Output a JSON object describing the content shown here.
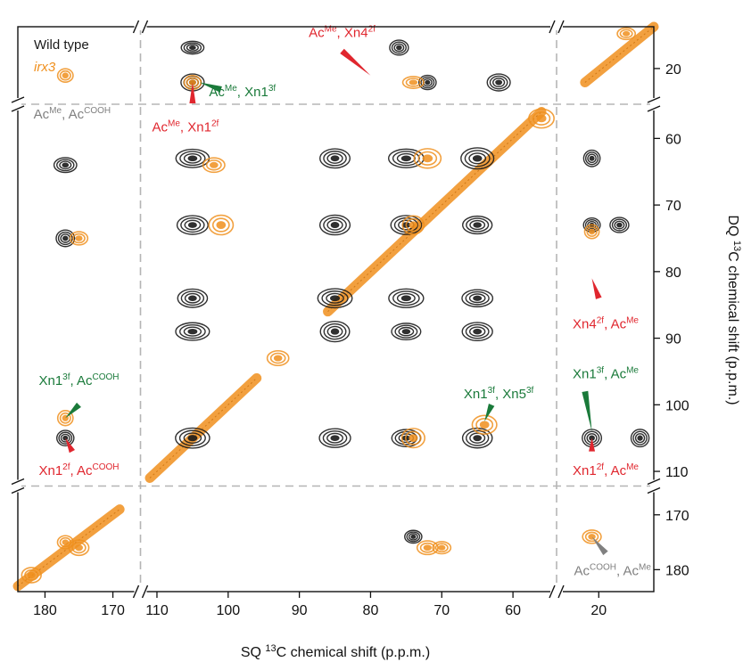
{
  "chart_data": {
    "type": "scatter",
    "subtype": "2D NMR contour spectrum (broken axes)",
    "xlabel_parts": [
      "SQ ",
      "13",
      "C chemical shift (p.p.m.)"
    ],
    "ylabel_parts": [
      "DQ ",
      "13",
      "C chemical shift (p.p.m.)"
    ],
    "x_segments": [
      {
        "range": [
          184,
          166
        ],
        "ticks": [
          180,
          170
        ]
      },
      {
        "range": [
          112,
          54
        ],
        "ticks": [
          110,
          100,
          90,
          80,
          70,
          60
        ]
      },
      {
        "range": [
          26,
          12
        ],
        "ticks": [
          20
        ]
      }
    ],
    "y_segments": [
      {
        "range": [
          14,
          25
        ],
        "ticks": [
          20
        ]
      },
      {
        "range": [
          55,
          112
        ],
        "ticks": [
          60,
          70,
          80,
          90,
          100,
          110
        ]
      },
      {
        "range": [
          165,
          184
        ],
        "ticks": [
          170,
          180
        ]
      }
    ],
    "grid": false,
    "legend_position": "top-left",
    "series": [
      {
        "name": "Wild type",
        "color": "#1a1a1a",
        "peaks": [
          {
            "x": 105,
            "y": 17
          },
          {
            "x": 76,
            "y": 17
          },
          {
            "x": 72,
            "y": 22
          },
          {
            "x": 62,
            "y": 22
          },
          {
            "x": 105,
            "y": 22
          },
          {
            "x": 177,
            "y": 64
          },
          {
            "x": 177,
            "y": 75
          },
          {
            "x": 105,
            "y": 63
          },
          {
            "x": 105,
            "y": 73
          },
          {
            "x": 105,
            "y": 84
          },
          {
            "x": 105,
            "y": 89
          },
          {
            "x": 85,
            "y": 63
          },
          {
            "x": 75,
            "y": 63
          },
          {
            "x": 65,
            "y": 63
          },
          {
            "x": 85,
            "y": 73
          },
          {
            "x": 75,
            "y": 73
          },
          {
            "x": 65,
            "y": 73
          },
          {
            "x": 85,
            "y": 84
          },
          {
            "x": 75,
            "y": 84
          },
          {
            "x": 65,
            "y": 84
          },
          {
            "x": 85,
            "y": 89
          },
          {
            "x": 75,
            "y": 89
          },
          {
            "x": 65,
            "y": 89
          },
          {
            "x": 85,
            "y": 105
          },
          {
            "x": 75,
            "y": 105
          },
          {
            "x": 65,
            "y": 105
          },
          {
            "x": 21,
            "y": 63
          },
          {
            "x": 21,
            "y": 73
          },
          {
            "x": 17,
            "y": 73
          },
          {
            "x": 21,
            "y": 105
          },
          {
            "x": 177,
            "y": 105
          },
          {
            "x": 105,
            "y": 105
          },
          {
            "x": 74,
            "y": 174
          },
          {
            "x": 14,
            "y": 105
          }
        ]
      },
      {
        "name": "irx3",
        "color": "#f0901e",
        "peaks": [
          {
            "x": 177,
            "y": 21
          },
          {
            "x": 105,
            "y": 22
          },
          {
            "x": 74,
            "y": 22
          },
          {
            "x": 102,
            "y": 64
          },
          {
            "x": 175,
            "y": 75
          },
          {
            "x": 101,
            "y": 73
          },
          {
            "x": 72,
            "y": 63
          },
          {
            "x": 74,
            "y": 73
          },
          {
            "x": 74,
            "y": 105
          },
          {
            "x": 64,
            "y": 103
          },
          {
            "x": 21,
            "y": 74
          },
          {
            "x": 177,
            "y": 102
          },
          {
            "x": 177,
            "y": 175
          },
          {
            "x": 175,
            "y": 176
          },
          {
            "x": 182,
            "y": 181
          },
          {
            "x": 21,
            "y": 174
          },
          {
            "x": 93,
            "y": 93
          },
          {
            "x": 56,
            "y": 57
          },
          {
            "x": 70,
            "y": 176
          },
          {
            "x": 72,
            "y": 176
          },
          {
            "x": 16,
            "y": 15
          }
        ]
      }
    ],
    "diagonals": [
      {
        "segment_x": 0,
        "segment_y": 2,
        "points": [
          [
            184,
            183
          ],
          [
            169,
            169
          ]
        ]
      },
      {
        "segment_x": 1,
        "segment_y": 1,
        "points": [
          [
            111,
            111
          ],
          [
            96,
            96
          ]
        ]
      },
      {
        "segment_x": 1,
        "segment_y": 1,
        "points": [
          [
            86,
            86
          ],
          [
            56,
            56
          ]
        ]
      },
      {
        "segment_x": 2,
        "segment_y": 0,
        "points": [
          [
            22,
            22
          ],
          [
            12,
            14
          ]
        ]
      }
    ],
    "annotations": [
      {
        "parts": [
          [
            "Ac",
            ""
          ],
          [
            "Me",
            "sup"
          ],
          [
            ", Xn4",
            ""
          ],
          [
            "2f",
            "sup"
          ]
        ],
        "color": "#e0262e",
        "x": 84,
        "y": 15.5,
        "seg": [
          1,
          0
        ],
        "anchor": "middle",
        "arrow": {
          "from": [
            84,
            17.5
          ],
          "to": [
            80,
            21
          ]
        }
      },
      {
        "parts": [
          [
            "Ac",
            ""
          ],
          [
            "Me",
            "sup"
          ],
          [
            ", Xn1",
            ""
          ],
          [
            "3f",
            "sup"
          ]
        ],
        "color": "#1a7a3a",
        "x": 98,
        "y": 24,
        "seg": [
          1,
          0
        ],
        "anchor": "middle",
        "arrow": {
          "from": [
            101,
            23
          ],
          "to": [
            104,
            22
          ]
        }
      },
      {
        "parts": [
          [
            "Ac",
            ""
          ],
          [
            "Me",
            "sup"
          ],
          [
            ", Xn1",
            ""
          ],
          [
            "2f",
            "sup"
          ]
        ],
        "color": "#e0262e",
        "x": 106,
        "y": 29,
        "seg": [
          1,
          0
        ],
        "anchor": "middle",
        "arrow": {
          "from": [
            105,
            25
          ],
          "to": [
            105,
            22
          ]
        }
      },
      {
        "parts": [
          [
            "Ac",
            ""
          ],
          [
            "Me",
            "sup"
          ],
          [
            ", Ac",
            ""
          ],
          [
            "COOH",
            "sup"
          ]
        ],
        "color": "#808080",
        "x": 176,
        "y": 57,
        "seg": [
          0,
          1
        ],
        "anchor": "middle"
      },
      {
        "parts": [
          [
            "Xn1",
            ""
          ],
          [
            "3f",
            "sup"
          ],
          [
            ", Ac",
            ""
          ],
          [
            "COOH",
            "sup"
          ]
        ],
        "color": "#1a7a3a",
        "x": 175,
        "y": 97,
        "seg": [
          0,
          1
        ],
        "anchor": "middle",
        "arrow": {
          "from": [
            175,
            100
          ],
          "to": [
            177,
            102
          ]
        }
      },
      {
        "parts": [
          [
            "Xn1",
            ""
          ],
          [
            "2f",
            "sup"
          ],
          [
            ", Ac",
            ""
          ],
          [
            "COOH",
            "sup"
          ]
        ],
        "color": "#e0262e",
        "x": 175,
        "y": 110.5,
        "seg": [
          0,
          1
        ],
        "anchor": "middle",
        "arrow": {
          "from": [
            176,
            107
          ],
          "to": [
            177,
            105
          ]
        }
      },
      {
        "parts": [
          [
            "Xn1",
            ""
          ],
          [
            "3f",
            "sup"
          ],
          [
            ", Xn5",
            ""
          ],
          [
            "3f",
            "sup"
          ]
        ],
        "color": "#1a7a3a",
        "x": 62,
        "y": 99,
        "seg": [
          1,
          1
        ],
        "anchor": "middle",
        "arrow": {
          "from": [
            63,
            100
          ],
          "to": [
            64,
            102.5
          ]
        }
      },
      {
        "parts": [
          [
            "Xn4",
            ""
          ],
          [
            "2f",
            "sup"
          ],
          [
            ", Ac",
            ""
          ],
          [
            "Me",
            "sup"
          ]
        ],
        "color": "#e0262e",
        "x": 19,
        "y": 88.5,
        "seg": [
          2,
          1
        ],
        "anchor": "middle",
        "arrow": {
          "from": [
            20,
            84
          ],
          "to": [
            21,
            81
          ]
        }
      },
      {
        "parts": [
          [
            "Xn1",
            ""
          ],
          [
            "3f",
            "sup"
          ],
          [
            ", Ac",
            ""
          ],
          [
            "Me",
            "sup"
          ]
        ],
        "color": "#1a7a3a",
        "x": 19,
        "y": 96,
        "seg": [
          2,
          1
        ],
        "anchor": "middle",
        "arrow": {
          "from": [
            22,
            98
          ],
          "to": [
            21,
            104
          ]
        }
      },
      {
        "parts": [
          [
            "Xn1",
            ""
          ],
          [
            "2f",
            "sup"
          ],
          [
            ", Ac",
            ""
          ],
          [
            "Me",
            "sup"
          ]
        ],
        "color": "#e0262e",
        "x": 19,
        "y": 110.5,
        "seg": [
          2,
          1
        ],
        "anchor": "middle",
        "arrow": {
          "from": [
            21,
            107
          ],
          "to": [
            21,
            105
          ]
        }
      },
      {
        "parts": [
          [
            "Ac",
            ""
          ],
          [
            "COOH",
            "sup"
          ],
          [
            ", Ac",
            ""
          ],
          [
            "Me",
            "sup"
          ]
        ],
        "color": "#808080",
        "x": 18,
        "y": 181,
        "seg": [
          2,
          2
        ],
        "anchor": "middle",
        "arrow": {
          "from": [
            19,
            177
          ],
          "to": [
            21,
            174
          ]
        }
      }
    ],
    "legend": [
      {
        "label": "Wild type",
        "color": "#1a1a1a",
        "italic": false
      },
      {
        "label": "irx3",
        "color": "#f0901e",
        "italic": true
      }
    ]
  }
}
